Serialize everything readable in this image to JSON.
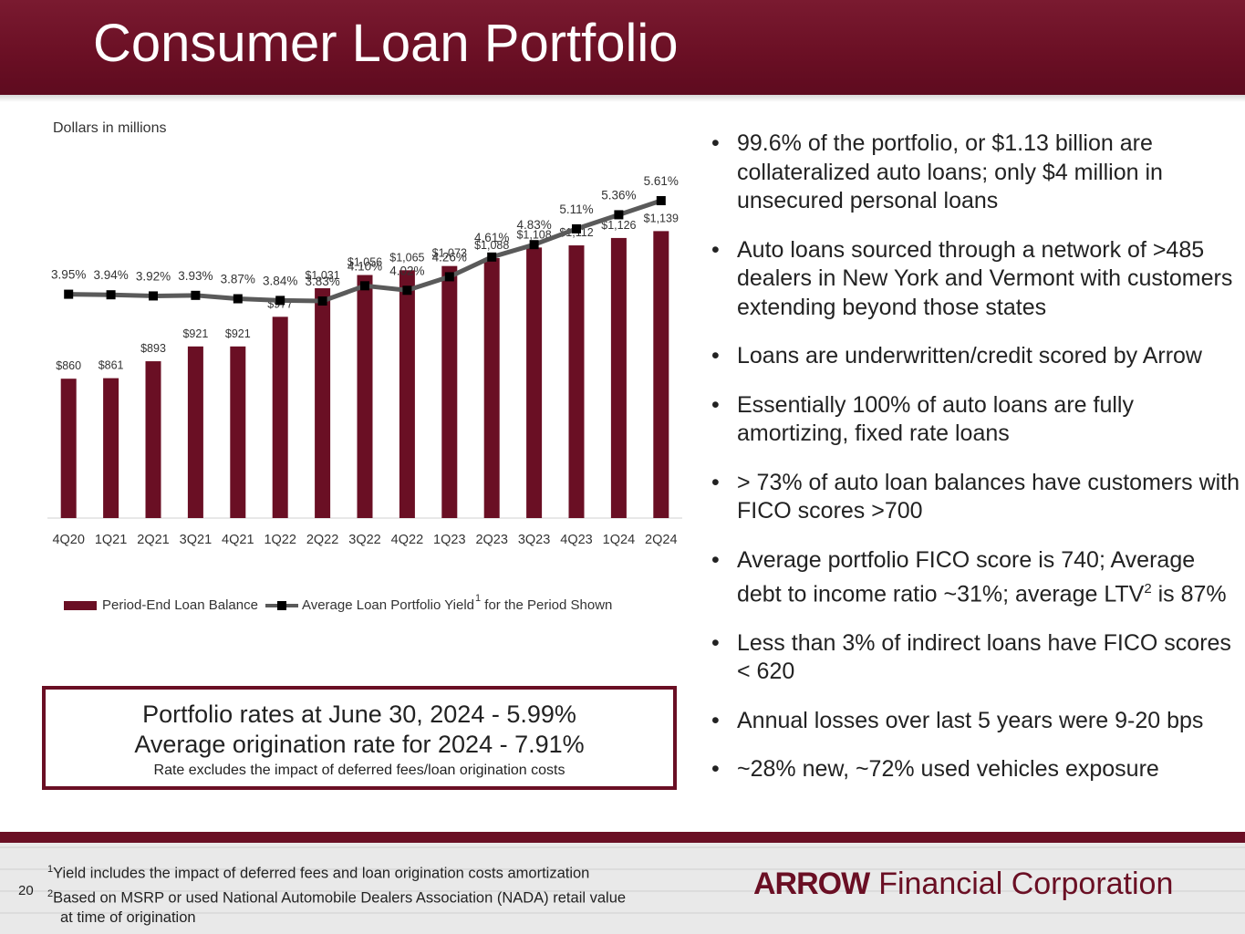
{
  "header": {
    "title": "Consumer Loan Portfolio"
  },
  "chart_data": {
    "type": "bar",
    "units_note": "Dollars in millions",
    "categories": [
      "4Q20",
      "1Q21",
      "2Q21",
      "3Q21",
      "4Q21",
      "1Q22",
      "2Q22",
      "3Q22",
      "4Q22",
      "1Q23",
      "2Q23",
      "3Q23",
      "4Q23",
      "1Q24",
      "2Q24"
    ],
    "series": [
      {
        "name": "Period-End Loan Balance",
        "type": "bar",
        "values": [
          860,
          861,
          893,
          921,
          921,
          977,
          1031,
          1056,
          1065,
          1073,
          1088,
          1108,
          1112,
          1126,
          1139
        ],
        "labels": [
          "$860",
          "$861",
          "$893",
          "$921",
          "$921",
          "$977",
          "$1,031",
          "$1,056",
          "$1,065",
          "$1,073",
          "$1,088",
          "$1,108",
          "$1,112",
          "$1,126",
          "$1,139"
        ],
        "color": "#6a0f24"
      },
      {
        "name": "Average Loan Portfolio Yield",
        "name_suffix": "for the Period Shown",
        "superscript": "1",
        "type": "line",
        "values": [
          3.95,
          3.94,
          3.92,
          3.93,
          3.87,
          3.84,
          3.83,
          4.1,
          4.02,
          4.26,
          4.61,
          4.83,
          5.11,
          5.36,
          5.61
        ],
        "labels": [
          "3.95%",
          "3.94%",
          "3.92%",
          "3.93%",
          "3.87%",
          "3.84%",
          "3.83%",
          "4.10%",
          "4.02%",
          "4.26%",
          "4.61%",
          "4.83%",
          "5.11%",
          "5.36%",
          "5.61%"
        ],
        "color": "#5a5a5a"
      }
    ],
    "legend": "bottom",
    "grid": false
  },
  "bullets": [
    "99.6% of the portfolio, or $1.13 billion are collateralized auto loans; only $4 million in unsecured personal loans",
    "Auto loans sourced through a network of >485 dealers in New York and Vermont with customers extending beyond those states",
    "Loans are underwritten/credit scored by Arrow",
    "Essentially 100% of auto loans are fully amortizing, fixed rate loans",
    "> 73% of auto loan balances have customers with FICO scores >700",
    {
      "before": "Average portfolio FICO score is 740; Average debt to income ratio ~31%; average LTV",
      "sup": "2",
      "after": " is 87%"
    },
    "Less than 3% of indirect loans have FICO scores < 620",
    "Annual losses over last 5 years were 9-20 bps",
    "~28% new, ~72% used vehicles exposure"
  ],
  "rate_box": {
    "line1": "Portfolio rates at June 30, 2024 - 5.99%",
    "line2": "Average origination rate for 2024 - 7.91%",
    "line3": "Rate excludes the impact of deferred fees/loan origination costs"
  },
  "footer": {
    "page_number": "20",
    "footnote1_num": "1",
    "footnote1_text": "Yield includes the impact of deferred fees and loan origination costs amortization",
    "footnote2_num": "2",
    "footnote2_text": "Based on MSRP or used National Automobile Dealers Association (NADA) retail value",
    "footnote2_cont": "at time of origination",
    "logo_mark": "ARROW",
    "logo_name": "Financial Corporation"
  },
  "colors": {
    "brand": "#6a0f24",
    "line": "#5a5a5a",
    "marker": "#000000"
  }
}
